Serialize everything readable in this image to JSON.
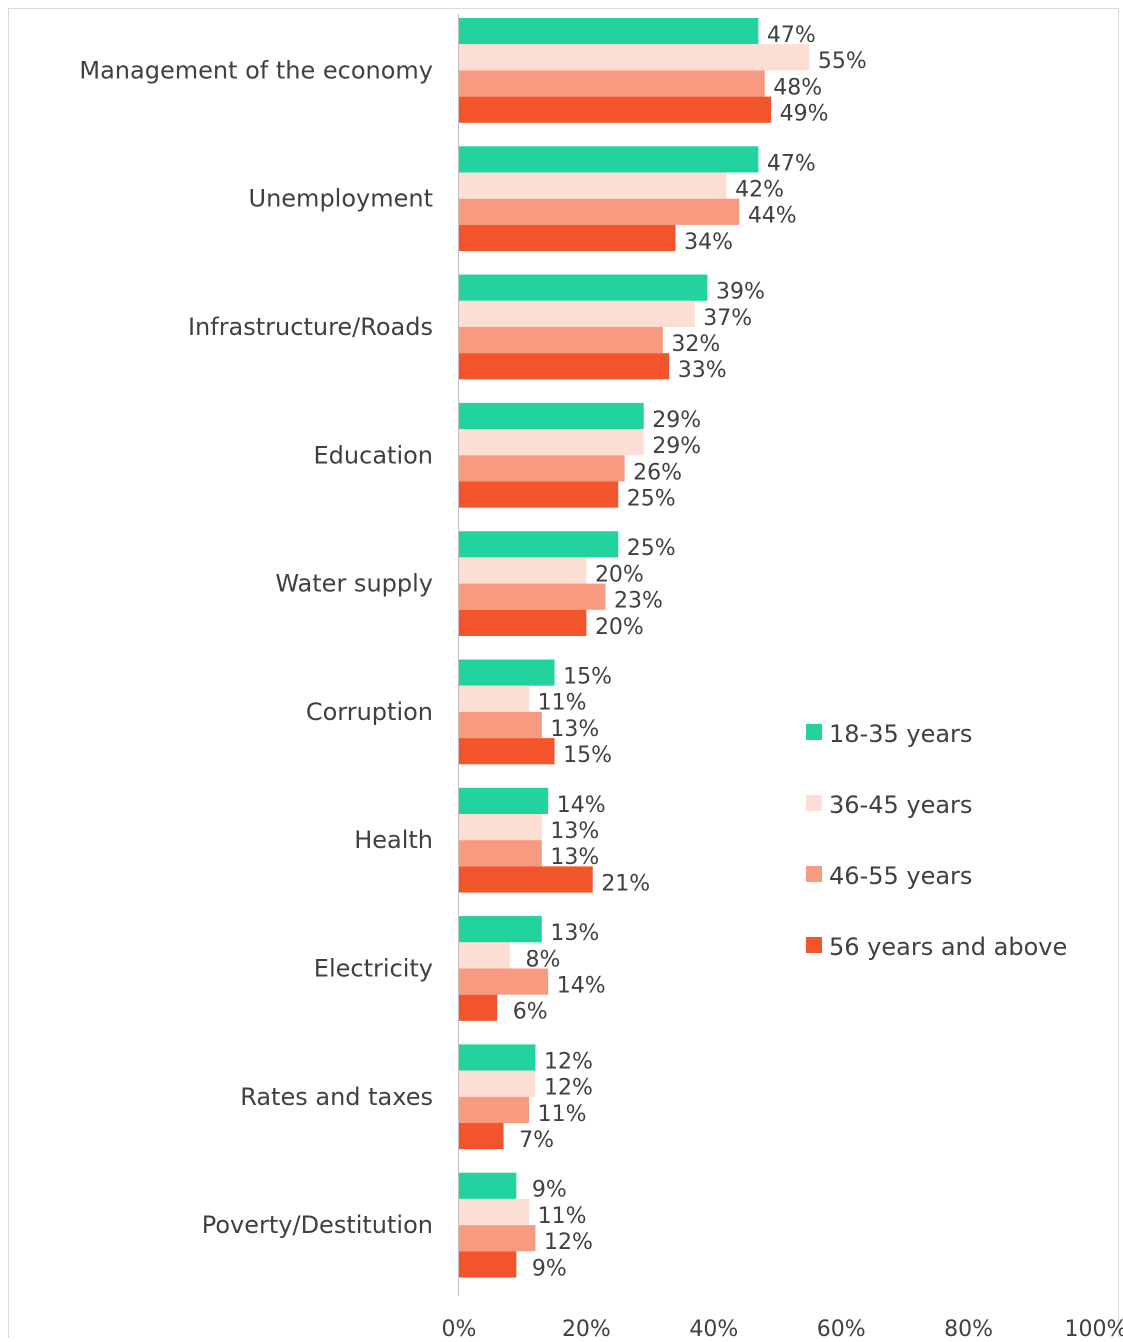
{
  "chart_data": {
    "type": "bar",
    "orientation": "horizontal",
    "categories": [
      "Management of the economy",
      "Unemployment",
      "Infrastructure/Roads",
      "Education",
      "Water supply",
      "Corruption",
      "Health",
      "Electricity",
      "Rates and taxes",
      "Poverty/Destitution"
    ],
    "series": [
      {
        "name": "18-35 years",
        "color": "#22D3A0",
        "values": [
          47,
          47,
          39,
          29,
          25,
          15,
          14,
          13,
          12,
          9
        ],
        "labels": [
          "47%",
          "47%",
          "39%",
          "29%",
          "25%",
          "15%",
          "14%",
          "13%",
          "12%",
          "9%"
        ]
      },
      {
        "name": "36-45 years",
        "color": "#FCDED5",
        "values": [
          55,
          42,
          37,
          29,
          20,
          11,
          13,
          8,
          12,
          11
        ],
        "labels": [
          "55%",
          "42%",
          "37%",
          "29%",
          "20%",
          "11%",
          "13%",
          "8%",
          "12%",
          "11%"
        ]
      },
      {
        "name": "46-55 years",
        "color": "#F89A80",
        "values": [
          48,
          44,
          32,
          26,
          23,
          13,
          13,
          14,
          11,
          12
        ],
        "labels": [
          "48%",
          "44%",
          "32%",
          "26%",
          "23%",
          "13%",
          "13%",
          "14%",
          "11%",
          "12%"
        ]
      },
      {
        "name": "56 years and above",
        "color": "#F2552B",
        "values": [
          49,
          34,
          33,
          25,
          20,
          15,
          21,
          6,
          7,
          9
        ],
        "labels": [
          "49%",
          "34%",
          "33%",
          "25%",
          "20%",
          "15%",
          "21%",
          "6%",
          "7%",
          "9%"
        ]
      }
    ],
    "xlim": [
      0,
      100
    ],
    "xticks": [
      0,
      20,
      40,
      60,
      80,
      100
    ],
    "xtick_labels": [
      "0%",
      "20%",
      "40%",
      "60%",
      "80%",
      "100%"
    ],
    "grid": false,
    "legend": "right",
    "title": "",
    "xlabel": "",
    "ylabel": ""
  }
}
